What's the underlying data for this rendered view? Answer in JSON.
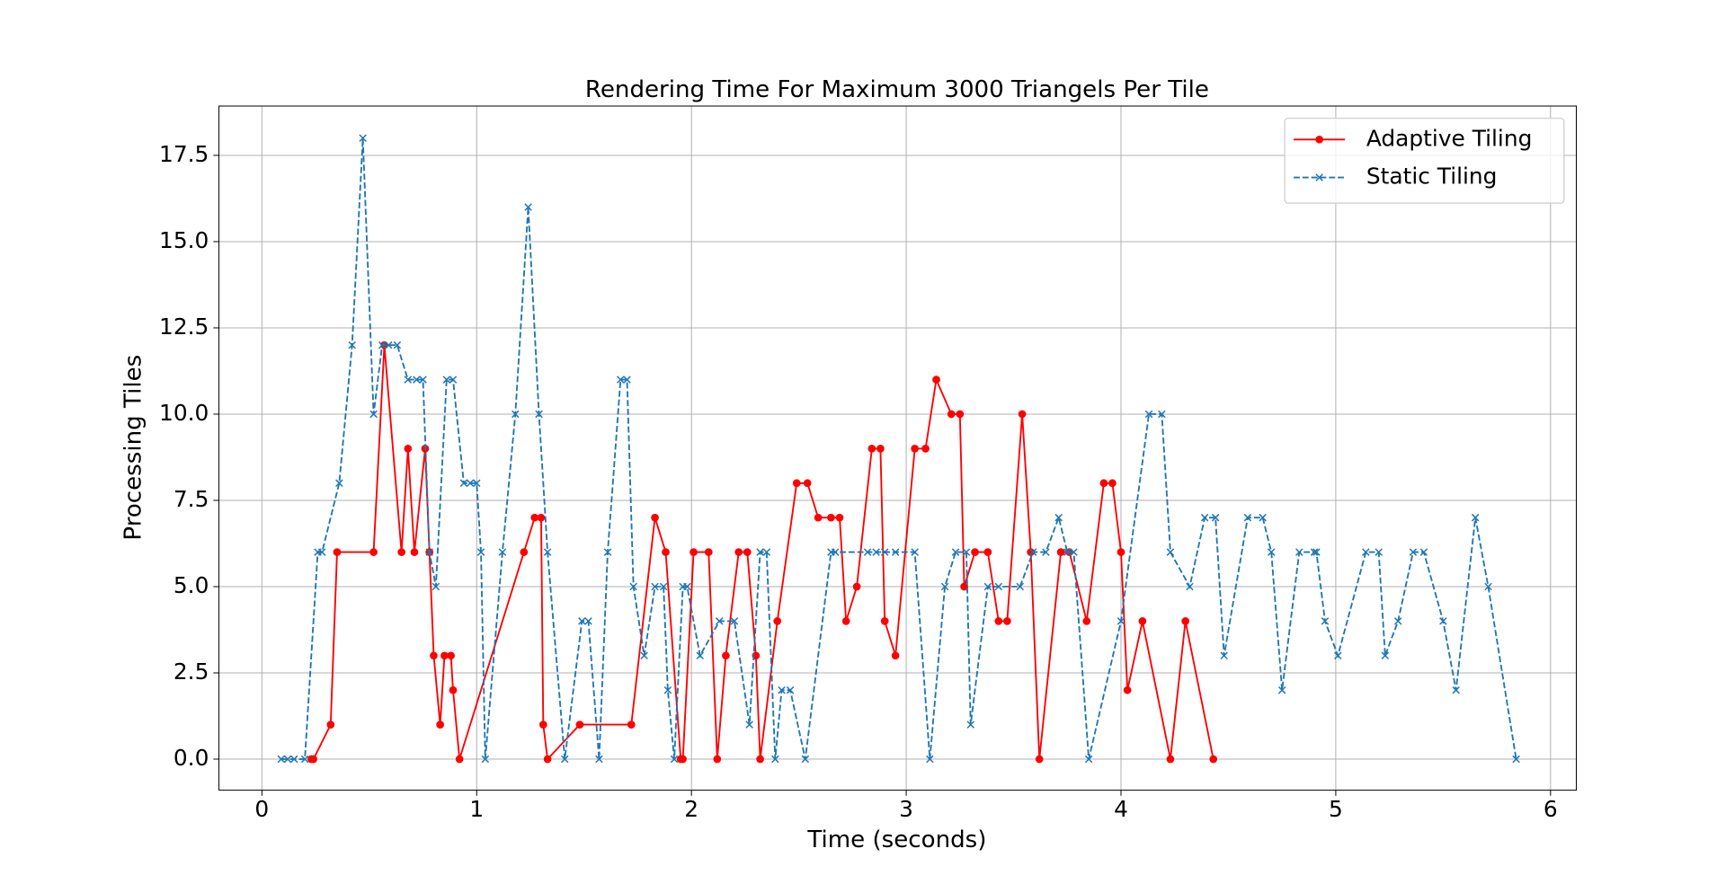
{
  "chart_data": {
    "type": "line",
    "title": "Rendering Time For Maximum 3000 Triangels Per Tile",
    "x_label": "Time (seconds)",
    "y_label": "Processing Tiles",
    "xlim": [
      -0.2,
      6.12
    ],
    "ylim": [
      -0.9,
      18.93
    ],
    "xticks": [
      0,
      1,
      2,
      3,
      4,
      5,
      6
    ],
    "yticks": [
      {
        "value": 0,
        "label": "0.0"
      },
      {
        "value": 2.5,
        "label": "2.5"
      },
      {
        "value": 5,
        "label": "5.0"
      },
      {
        "value": 7.5,
        "label": "7.5"
      },
      {
        "value": 10,
        "label": "10.0"
      },
      {
        "value": 12.5,
        "label": "12.5"
      },
      {
        "value": 15,
        "label": "15.0"
      },
      {
        "value": 17.5,
        "label": "17.5"
      }
    ],
    "grid": true,
    "legend": "upper right",
    "series": [
      {
        "name": "Adaptive Tiling",
        "color": "#ff0000",
        "line_style": "solid",
        "marker": "circle",
        "x": [
          0.23,
          0.24,
          0.32,
          0.35,
          0.52,
          0.57,
          0.65,
          0.68,
          0.71,
          0.76,
          0.78,
          0.8,
          0.83,
          0.85,
          0.88,
          0.89,
          0.92,
          1.22,
          1.27,
          1.3,
          1.31,
          1.33,
          1.48,
          1.72,
          1.83,
          1.88,
          1.95,
          1.96,
          2.01,
          2.08,
          2.12,
          2.16,
          2.22,
          2.26,
          2.3,
          2.32,
          2.4,
          2.49,
          2.54,
          2.59,
          2.65,
          2.69,
          2.72,
          2.77,
          2.84,
          2.88,
          2.9,
          2.95,
          3.04,
          3.09,
          3.14,
          3.21,
          3.25,
          3.27,
          3.32,
          3.38,
          3.43,
          3.47,
          3.54,
          3.58,
          3.62,
          3.72,
          3.76,
          3.84,
          3.92,
          3.96,
          4.0,
          4.03,
          4.1,
          4.23,
          4.3,
          4.43
        ],
        "values": [
          0,
          0,
          1,
          6,
          6,
          12,
          6,
          9,
          6,
          9,
          6,
          3,
          1,
          3,
          3,
          2,
          0,
          6,
          7,
          7,
          1,
          0,
          1,
          1,
          7,
          6,
          0,
          0,
          6,
          6,
          0,
          3,
          6,
          6,
          3,
          0,
          4,
          8,
          8,
          7,
          7,
          7,
          4,
          5,
          9,
          9,
          4,
          3,
          9,
          9,
          11,
          10,
          10,
          5,
          6,
          6,
          4,
          4,
          10,
          6,
          0,
          6,
          6,
          4,
          8,
          8,
          6,
          2,
          4,
          0,
          4,
          0
        ]
      },
      {
        "name": "Static Tiling",
        "color": "#1f77b4",
        "line_style": "dashed",
        "marker": "x",
        "x": [
          0.09,
          0.12,
          0.15,
          0.2,
          0.26,
          0.28,
          0.36,
          0.42,
          0.47,
          0.52,
          0.56,
          0.59,
          0.63,
          0.68,
          0.72,
          0.75,
          0.78,
          0.81,
          0.86,
          0.89,
          0.94,
          0.97,
          1.0,
          1.02,
          1.04,
          1.12,
          1.18,
          1.24,
          1.29,
          1.33,
          1.41,
          1.49,
          1.52,
          1.57,
          1.61,
          1.67,
          1.7,
          1.73,
          1.78,
          1.83,
          1.87,
          1.89,
          1.92,
          1.96,
          1.98,
          2.04,
          2.13,
          2.2,
          2.27,
          2.32,
          2.35,
          2.39,
          2.42,
          2.46,
          2.53,
          2.65,
          2.67,
          2.82,
          2.86,
          2.9,
          2.95,
          3.04,
          3.11,
          3.18,
          3.23,
          3.28,
          3.3,
          3.38,
          3.43,
          3.53,
          3.59,
          3.65,
          3.71,
          3.75,
          3.78,
          3.85,
          4.0,
          4.13,
          4.19,
          4.23,
          4.32,
          4.39,
          4.44,
          4.48,
          4.59,
          4.66,
          4.7,
          4.75,
          4.83,
          4.9,
          4.91,
          4.95,
          5.01,
          5.14,
          5.2,
          5.23,
          5.29,
          5.36,
          5.41,
          5.5,
          5.56,
          5.65,
          5.71,
          5.84
        ],
        "values": [
          0,
          0,
          0,
          0,
          6,
          6,
          8,
          12,
          18,
          10,
          12,
          12,
          12,
          11,
          11,
          11,
          6,
          5,
          11,
          11,
          8,
          8,
          8,
          6,
          0,
          6,
          10,
          16,
          10,
          6,
          0,
          4,
          4,
          0,
          6,
          11,
          11,
          5,
          3,
          5,
          5,
          2,
          0,
          5,
          5,
          3,
          4,
          4,
          1,
          6,
          6,
          0,
          2,
          2,
          0,
          6,
          6,
          6,
          6,
          6,
          6,
          6,
          0,
          5,
          6,
          6,
          1,
          5,
          5,
          5,
          6,
          6,
          7,
          6,
          6,
          0,
          4,
          10,
          10,
          6,
          5,
          7,
          7,
          3,
          7,
          7,
          6,
          2,
          6,
          6,
          6,
          4,
          3,
          6,
          6,
          3,
          4,
          6,
          6,
          4,
          2,
          7,
          5,
          0
        ]
      }
    ]
  }
}
